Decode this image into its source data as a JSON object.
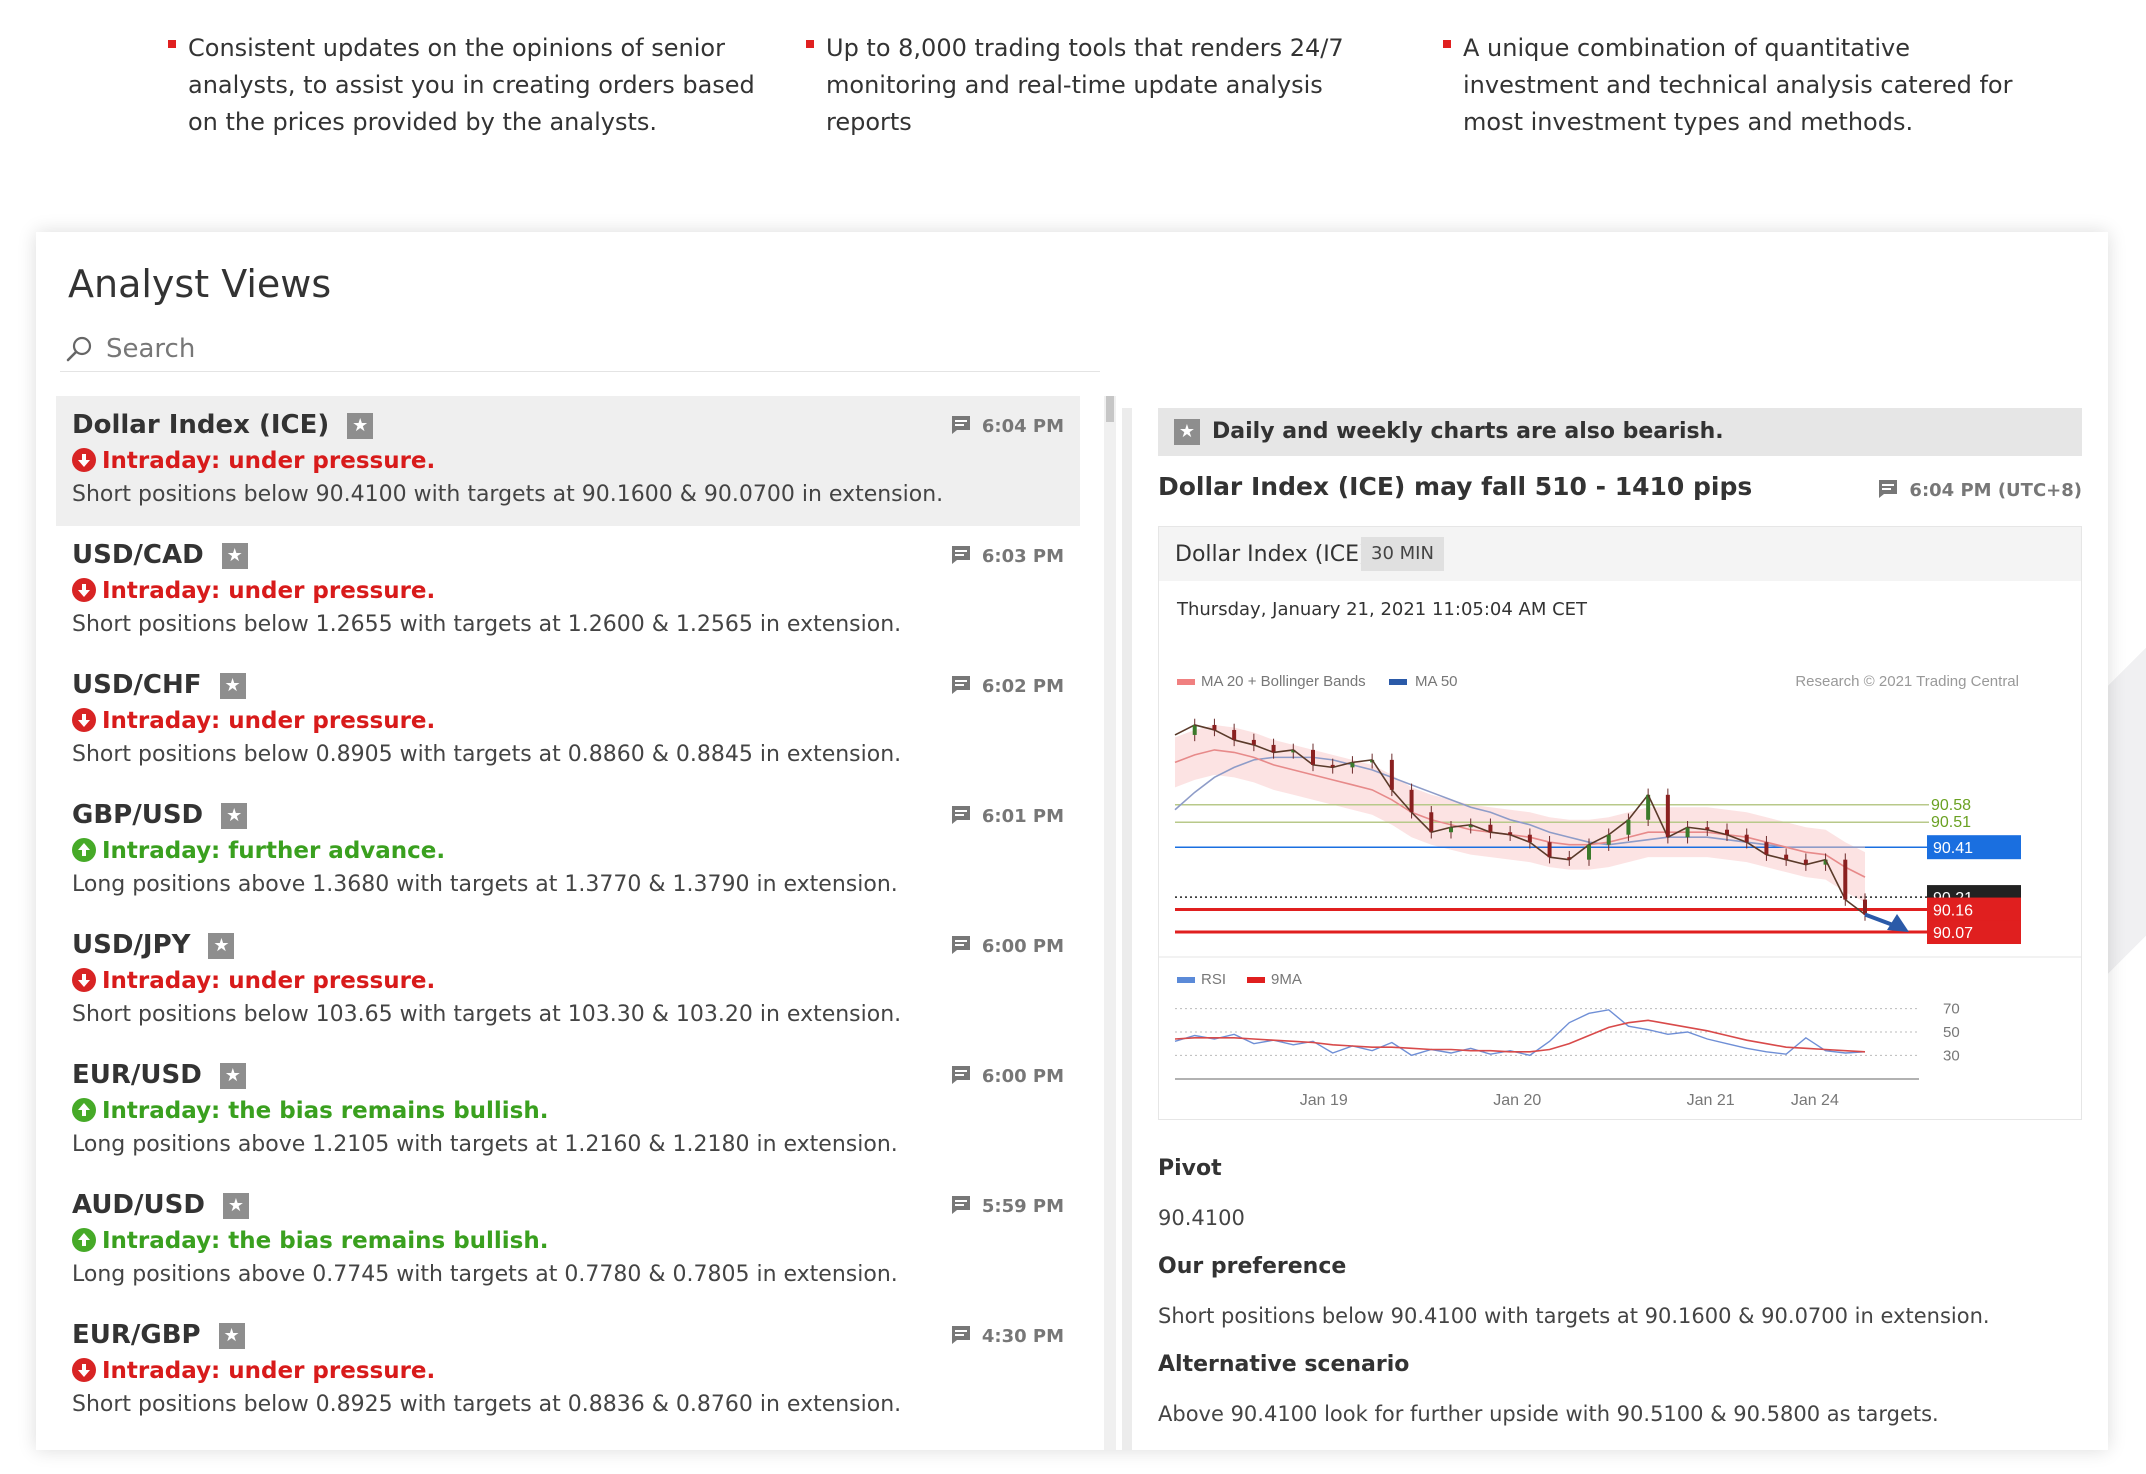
{
  "features": [
    {
      "text": "Consistent updates on the opinions of senior analysts, to assist you in creating orders based on the prices provided by the analysts."
    },
    {
      "text": "Up to 8,000 trading tools that renders 24/7 monitoring and real-time update analysis reports"
    },
    {
      "text": "A unique combination of quantitative investment and technical analysis catered for most investment types and methods."
    }
  ],
  "panel": {
    "title": "Analyst Views",
    "search_placeholder": "Search"
  },
  "items": [
    {
      "name": "Dollar Index (ICE)",
      "time": "6:04 PM",
      "direction": "down",
      "trend": "Intraday: under pressure.",
      "desc": "Short positions below 90.4100 with targets at 90.1600 & 90.0700 in extension."
    },
    {
      "name": "USD/CAD",
      "time": "6:03 PM",
      "direction": "down",
      "trend": "Intraday: under pressure.",
      "desc": "Short positions below 1.2655 with targets at 1.2600 & 1.2565 in extension."
    },
    {
      "name": "USD/CHF",
      "time": "6:02 PM",
      "direction": "down",
      "trend": "Intraday: under pressure.",
      "desc": "Short positions below 0.8905 with targets at 0.8860 & 0.8845 in extension."
    },
    {
      "name": "GBP/USD",
      "time": "6:01 PM",
      "direction": "up",
      "trend": "Intraday: further advance.",
      "desc": "Long positions above 1.3680 with targets at 1.3770 & 1.3790 in extension."
    },
    {
      "name": "USD/JPY",
      "time": "6:00 PM",
      "direction": "down",
      "trend": "Intraday: under pressure.",
      "desc": "Short positions below 103.65 with targets at 103.30 & 103.20 in extension."
    },
    {
      "name": "EUR/USD",
      "time": "6:00 PM",
      "direction": "up",
      "trend": "Intraday: the bias remains bullish.",
      "desc": "Long positions above 1.2105 with targets at 1.2160 & 1.2180 in extension."
    },
    {
      "name": "AUD/USD",
      "time": "5:59 PM",
      "direction": "up",
      "trend": "Intraday: the bias remains bullish.",
      "desc": "Long positions above 0.7745 with targets at 0.7780 & 0.7805 in extension."
    },
    {
      "name": "EUR/GBP",
      "time": "4:30 PM",
      "direction": "down",
      "trend": "Intraday: under pressure.",
      "desc": "Short positions below 0.8925 with targets at 0.8836 & 0.8760 in extension."
    }
  ],
  "detail": {
    "banner": "Daily and weekly charts are also bearish.",
    "headline": "Dollar Index (ICE) may fall 510 - 1410 pips",
    "time": "6:04 PM (UTC+8)",
    "chart_symbol": "Dollar Index (ICE)",
    "chart_timeframe": "30 MIN",
    "chart_datetime": "Thursday, January 21, 2021 11:05:04 AM CET",
    "pivot_label": "Pivot",
    "pivot_value": "90.4100",
    "pref_label": "Our preference",
    "pref_text": "Short positions below 90.4100 with targets at 90.1600 & 90.0700 in extension.",
    "alt_label": "Alternative scenario",
    "alt_text": "Above 90.4100 look for further upside with 90.5100 & 90.5800 as targets."
  },
  "chart_data": {
    "type": "line",
    "legend": [
      "MA 20 + Bollinger Bands",
      "MA 50"
    ],
    "credit": "Research © 2021 Trading Central",
    "x_ticks": [
      "Jan 19",
      "Jan 20",
      "Jan 21",
      "Jan 24"
    ],
    "price": [
      90.86,
      90.9,
      90.88,
      90.84,
      90.82,
      90.79,
      90.8,
      90.74,
      90.73,
      90.75,
      90.76,
      90.64,
      90.55,
      90.47,
      90.49,
      90.5,
      90.47,
      90.46,
      90.43,
      90.37,
      90.36,
      90.42,
      90.46,
      90.52,
      90.62,
      90.45,
      90.49,
      90.48,
      90.46,
      90.43,
      90.38,
      90.36,
      90.34,
      90.36,
      90.2,
      90.14
    ],
    "ma20": [
      90.75,
      90.78,
      90.8,
      90.79,
      90.77,
      90.74,
      90.72,
      90.7,
      90.68,
      90.66,
      90.64,
      90.6,
      90.55,
      90.52,
      90.5,
      90.48,
      90.47,
      90.46,
      90.45,
      90.43,
      90.42,
      90.42,
      90.43,
      90.45,
      90.47,
      90.47,
      90.47,
      90.47,
      90.46,
      90.45,
      90.43,
      90.41,
      90.39,
      90.38,
      90.33,
      90.29
    ],
    "ma50": [
      90.56,
      90.63,
      90.69,
      90.73,
      90.76,
      90.77,
      90.77,
      90.77,
      90.76,
      90.74,
      90.72,
      90.69,
      90.66,
      90.63,
      90.6,
      90.57,
      90.55,
      90.52,
      90.5,
      90.47,
      90.45,
      90.43,
      90.42,
      90.43,
      90.44,
      90.45,
      90.45,
      90.45,
      90.44,
      90.43,
      90.42,
      90.41,
      90.41,
      90.41,
      90.41,
      90.41
    ],
    "levels": [
      {
        "value": 90.58,
        "label": "90.58",
        "color": "#b8c98a"
      },
      {
        "value": 90.51,
        "label": "90.51",
        "color": "#b8c98a"
      },
      {
        "value": 90.41,
        "label": "90.41",
        "color": "#1a6fe0"
      },
      {
        "value": 90.21,
        "label": "90.21",
        "color": "#222222"
      },
      {
        "value": 90.16,
        "label": "90.16",
        "color": "#e01f1f"
      },
      {
        "value": 90.07,
        "label": "90.07",
        "color": "#e01f1f"
      }
    ],
    "rsi_legend": [
      "RSI",
      "9MA"
    ],
    "rsi_ticks": [
      70,
      50,
      30
    ],
    "rsi": [
      42,
      47,
      44,
      48,
      40,
      43,
      39,
      42,
      32,
      38,
      34,
      41,
      30,
      35,
      32,
      36,
      31,
      34,
      30,
      42,
      58,
      66,
      69,
      55,
      52,
      48,
      50,
      44,
      40,
      36,
      33,
      31,
      45,
      34,
      32,
      33
    ],
    "rsi_ma": [
      44,
      45,
      45,
      45,
      44,
      43,
      42,
      41,
      39,
      38,
      37,
      37,
      36,
      35,
      35,
      34,
      34,
      33,
      33,
      35,
      40,
      47,
      54,
      58,
      60,
      57,
      54,
      51,
      47,
      43,
      40,
      37,
      36,
      35,
      34,
      33
    ]
  },
  "colors": {
    "down": "#d81b1b",
    "up": "#3aa01f",
    "accent": "#e02020"
  }
}
